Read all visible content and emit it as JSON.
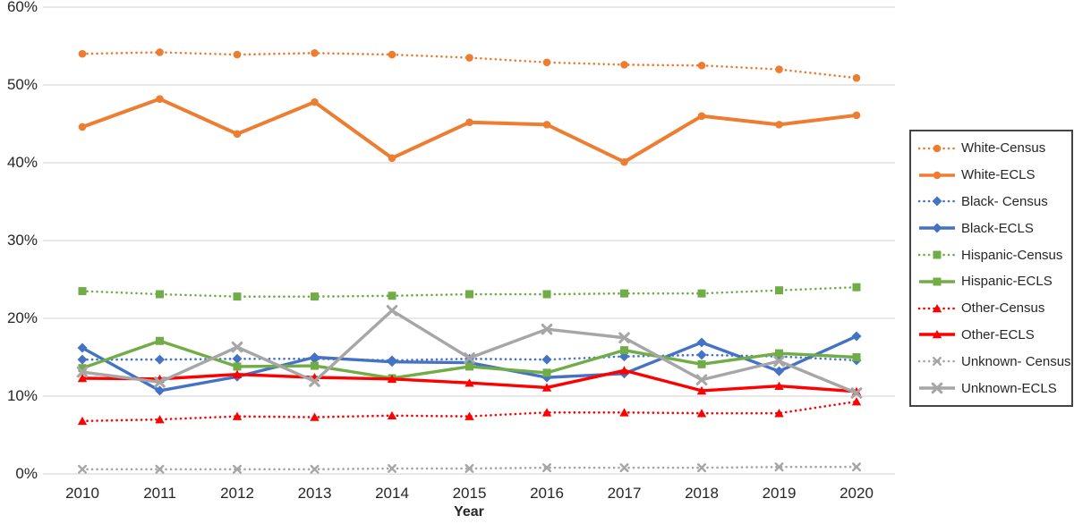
{
  "chart_data": {
    "type": "line",
    "title": "",
    "xlabel": "Year",
    "ylabel": "",
    "grid": "horizontal",
    "legend_position": "right",
    "x": [
      2010,
      2011,
      2012,
      2013,
      2014,
      2015,
      2016,
      2017,
      2018,
      2019,
      2020
    ],
    "y_axis": {
      "min": 0,
      "max": 60,
      "tick_step": 10,
      "ticks": [
        0,
        10,
        20,
        30,
        40,
        50,
        60
      ],
      "tick_labels": [
        "0%",
        "10%",
        "20%",
        "30%",
        "40%",
        "50%",
        "60%"
      ]
    },
    "series": [
      {
        "name": "White-Census",
        "color": "#ED7D31",
        "line": "dotted",
        "marker": "circle",
        "values": [
          54.0,
          54.2,
          53.9,
          54.1,
          53.9,
          53.5,
          52.9,
          52.6,
          52.5,
          52.0,
          50.9
        ]
      },
      {
        "name": "White-ECLS",
        "color": "#ED7D31",
        "line": "solid",
        "marker": "circle",
        "values": [
          44.6,
          48.2,
          43.7,
          47.8,
          40.6,
          45.2,
          44.9,
          40.1,
          46.0,
          44.9,
          46.1
        ]
      },
      {
        "name": "Black- Census",
        "color": "#4472C4",
        "line": "dotted",
        "marker": "diamond",
        "values": [
          14.7,
          14.7,
          14.8,
          14.8,
          14.6,
          14.8,
          14.7,
          15.1,
          15.3,
          15.1,
          14.6
        ]
      },
      {
        "name": "Black-ECLS",
        "color": "#4472C4",
        "line": "solid",
        "marker": "diamond",
        "values": [
          16.2,
          10.7,
          12.5,
          15.0,
          14.4,
          14.3,
          12.4,
          12.9,
          16.9,
          13.2,
          17.7
        ]
      },
      {
        "name": "Hispanic-Census",
        "color": "#70AD47",
        "line": "dotted",
        "marker": "square",
        "values": [
          23.5,
          23.1,
          22.8,
          22.8,
          22.9,
          23.1,
          23.1,
          23.2,
          23.2,
          23.6,
          24.0
        ]
      },
      {
        "name": "Hispanic-ECLS",
        "color": "#70AD47",
        "line": "solid",
        "marker": "square",
        "values": [
          13.6,
          17.1,
          13.8,
          13.9,
          12.3,
          13.8,
          13.0,
          15.9,
          14.1,
          15.5,
          15.0
        ]
      },
      {
        "name": "Other-Census",
        "color": "#FF0000",
        "line": "dotted",
        "marker": "triangle",
        "values": [
          6.8,
          7.0,
          7.4,
          7.3,
          7.5,
          7.4,
          7.9,
          7.9,
          7.8,
          7.8,
          9.3
        ]
      },
      {
        "name": "Other-ECLS",
        "color": "#FF0000",
        "line": "solid",
        "marker": "triangle",
        "values": [
          12.3,
          12.2,
          12.8,
          12.4,
          12.2,
          11.7,
          11.1,
          13.3,
          10.7,
          11.3,
          10.6
        ]
      },
      {
        "name": "Unknown- Census",
        "color": "#A6A6A6",
        "line": "dotted",
        "marker": "x",
        "values": [
          0.6,
          0.6,
          0.6,
          0.6,
          0.7,
          0.7,
          0.8,
          0.8,
          0.8,
          0.9,
          0.9
        ]
      },
      {
        "name": "Unknown-ECLS",
        "color": "#A6A6A6",
        "line": "solid",
        "marker": "x",
        "values": [
          13.1,
          11.8,
          16.3,
          11.9,
          21.0,
          14.9,
          18.6,
          17.5,
          12.1,
          14.5,
          10.4
        ]
      }
    ],
    "colors": {
      "gridline": "#D9D9D9",
      "axis_text": "#262626",
      "legend_border": "#444444",
      "background": "#FFFFFF"
    }
  }
}
